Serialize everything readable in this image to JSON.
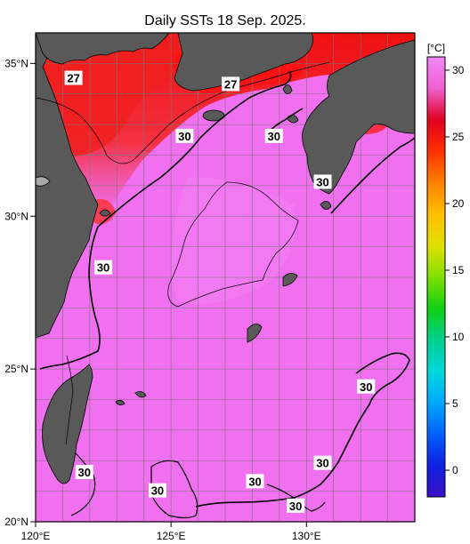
{
  "title": "Daily SSTs 18 Sep. 2025.",
  "map": {
    "lon_range": [
      120,
      134
    ],
    "lat_range": [
      20,
      36
    ],
    "lon_ticks": [
      {
        "value": 120,
        "label": "120°E"
      },
      {
        "value": 125,
        "label": "125°E"
      },
      {
        "value": 130,
        "label": "130°E"
      }
    ],
    "lat_ticks": [
      {
        "value": 35,
        "label": "35°N"
      },
      {
        "value": 30,
        "label": "30°N"
      },
      {
        "value": 25,
        "label": "25°N"
      },
      {
        "value": 20,
        "label": "20°N"
      }
    ],
    "grid_step_deg": 1,
    "land_color": "#595959",
    "ocean_base_color": "#f070f0",
    "contour_labels": [
      {
        "text": "27",
        "lon": 121.4,
        "lat": 34.5
      },
      {
        "text": "27",
        "lon": 127.2,
        "lat": 34.3
      },
      {
        "text": "30",
        "lon": 125.5,
        "lat": 32.6
      },
      {
        "text": "30",
        "lon": 128.8,
        "lat": 32.6
      },
      {
        "text": "30",
        "lon": 130.6,
        "lat": 31.1
      },
      {
        "text": "30",
        "lon": 122.5,
        "lat": 28.3
      },
      {
        "text": "30",
        "lon": 132.2,
        "lat": 24.4
      },
      {
        "text": "30",
        "lon": 130.6,
        "lat": 21.9
      },
      {
        "text": "30",
        "lon": 121.8,
        "lat": 21.6
      },
      {
        "text": "30",
        "lon": 124.5,
        "lat": 21.0
      },
      {
        "text": "30",
        "lon": 128.1,
        "lat": 21.3
      },
      {
        "text": "30",
        "lon": 129.6,
        "lat": 20.5
      }
    ]
  },
  "colorbar": {
    "unit": "[°C]",
    "range": [
      -2,
      31
    ],
    "ticks": [
      {
        "value": 30,
        "label": "30"
      },
      {
        "value": 25,
        "label": "25"
      },
      {
        "value": 20,
        "label": "20"
      },
      {
        "value": 15,
        "label": "15"
      },
      {
        "value": 10,
        "label": "10"
      },
      {
        "value": 5,
        "label": "5"
      },
      {
        "value": 0,
        "label": "0"
      }
    ],
    "colors": [
      "#3a10c8",
      "#1020e0",
      "#0060ff",
      "#00a8ff",
      "#00d8d8",
      "#00d090",
      "#10d010",
      "#80e000",
      "#e0e000",
      "#ffc000",
      "#ff8000",
      "#ff3000",
      "#e00020",
      "#f060d0",
      "#f088f8"
    ]
  }
}
